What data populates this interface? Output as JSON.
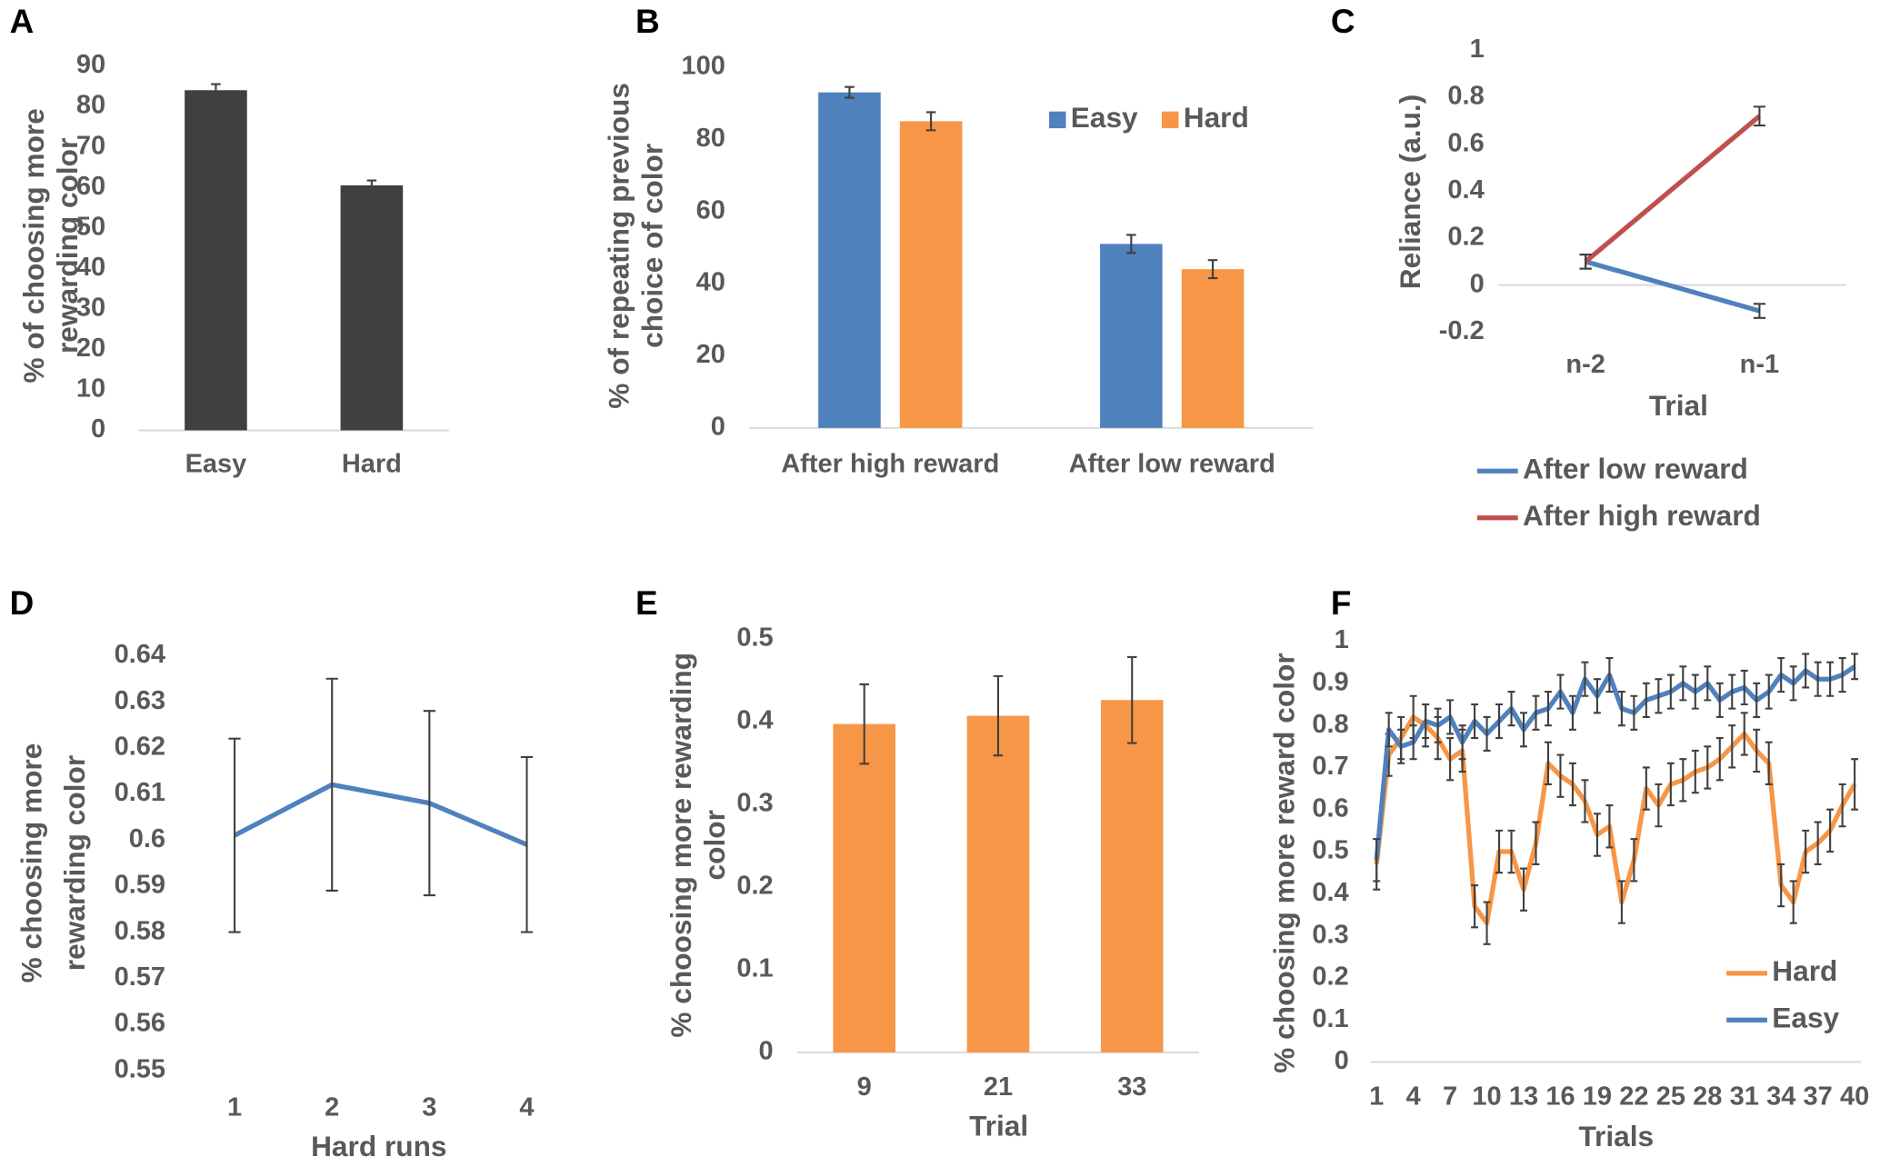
{
  "chart_data": [
    {
      "type": "bar",
      "panel": "A",
      "ylabel": [
        "% of choosing more",
        "rewarding color"
      ],
      "categories": [
        "Easy",
        "Hard"
      ],
      "values": [
        84,
        60.5
      ],
      "error": [
        1.5,
        1.2
      ],
      "color": "#404040",
      "ylim": [
        0,
        90
      ],
      "yticks": [
        0,
        10,
        20,
        30,
        40,
        50,
        60,
        70,
        80,
        90
      ]
    },
    {
      "type": "bar",
      "panel": "B",
      "ylabel": [
        "% of repeating previous",
        "choice of color"
      ],
      "categories": [
        "After high reward",
        "After low reward"
      ],
      "series": [
        {
          "name": "Easy",
          "color": "#4f81bd",
          "values": [
            93,
            51
          ],
          "error": [
            1.5,
            2.5
          ]
        },
        {
          "name": "Hard",
          "color": "#f79646",
          "values": [
            85,
            44
          ],
          "error": [
            2.5,
            2.5
          ]
        }
      ],
      "ylim": [
        0,
        100
      ],
      "yticks": [
        0,
        20,
        40,
        60,
        80,
        100
      ]
    },
    {
      "type": "line",
      "panel": "C",
      "ylabel": [
        "Reliance (a.u.)"
      ],
      "xlabel": "Trial",
      "categories": [
        "n-2",
        "n-1"
      ],
      "series": [
        {
          "name": "After low reward",
          "color": "#4f81bd",
          "values": [
            0.1,
            -0.11
          ],
          "error": [
            0.03,
            0.03
          ]
        },
        {
          "name": "After high reward",
          "color": "#c0504d",
          "values": [
            0.1,
            0.72
          ],
          "error": [
            0.03,
            0.04
          ]
        }
      ],
      "ylim": [
        -0.2,
        1
      ],
      "yticks": [
        -0.2,
        0,
        0.2,
        0.4,
        0.6,
        0.8,
        1
      ]
    },
    {
      "type": "line",
      "panel": "D",
      "ylabel": [
        "% choosing more",
        "rewarding color"
      ],
      "xlabel": "Hard runs",
      "categories": [
        "1",
        "2",
        "3",
        "4"
      ],
      "values": [
        0.601,
        0.612,
        0.608,
        0.599
      ],
      "error": [
        0.021,
        0.023,
        0.02,
        0.019
      ],
      "color": "#4f81bd",
      "ylim": [
        0.55,
        0.64
      ],
      "yticks": [
        0.55,
        0.56,
        0.57,
        0.58,
        0.59,
        0.6,
        0.61,
        0.62,
        0.63,
        0.64
      ]
    },
    {
      "type": "bar",
      "panel": "E",
      "ylabel": [
        "% choosing more rewarding",
        "color"
      ],
      "xlabel": "Trial",
      "categories": [
        "9",
        "21",
        "33"
      ],
      "values": [
        0.397,
        0.407,
        0.426
      ],
      "error": [
        0.048,
        0.048,
        0.052
      ],
      "color": "#f79646",
      "ylim": [
        0,
        0.5
      ],
      "yticks": [
        0,
        0.1,
        0.2,
        0.3,
        0.4,
        0.5
      ]
    },
    {
      "type": "line",
      "panel": "F",
      "ylabel": [
        "% choosing more reward color"
      ],
      "xlabel": "Trials",
      "x": [
        1,
        2,
        3,
        4,
        5,
        6,
        7,
        8,
        9,
        10,
        11,
        12,
        13,
        14,
        15,
        16,
        17,
        18,
        19,
        20,
        21,
        22,
        23,
        24,
        25,
        26,
        27,
        28,
        29,
        30,
        31,
        32,
        33,
        34,
        35,
        36,
        37,
        38,
        39,
        40
      ],
      "series": [
        {
          "name": "Hard",
          "color": "#f79646",
          "values": [
            0.47,
            0.73,
            0.77,
            0.82,
            0.8,
            0.77,
            0.72,
            0.74,
            0.37,
            0.33,
            0.5,
            0.5,
            0.41,
            0.52,
            0.71,
            0.68,
            0.66,
            0.62,
            0.54,
            0.56,
            0.38,
            0.48,
            0.65,
            0.61,
            0.66,
            0.67,
            0.69,
            0.7,
            0.72,
            0.75,
            0.78,
            0.74,
            0.71,
            0.42,
            0.38,
            0.5,
            0.52,
            0.55,
            0.61,
            0.66
          ],
          "error": [
            0.06,
            0.05,
            0.05,
            0.05,
            0.05,
            0.05,
            0.05,
            0.05,
            0.05,
            0.05,
            0.05,
            0.05,
            0.05,
            0.05,
            0.05,
            0.05,
            0.05,
            0.05,
            0.05,
            0.05,
            0.05,
            0.05,
            0.05,
            0.05,
            0.05,
            0.05,
            0.05,
            0.05,
            0.05,
            0.05,
            0.05,
            0.05,
            0.05,
            0.05,
            0.05,
            0.05,
            0.05,
            0.05,
            0.05,
            0.06
          ]
        },
        {
          "name": "Easy",
          "color": "#4f81bd",
          "values": [
            0.48,
            0.79,
            0.75,
            0.76,
            0.81,
            0.8,
            0.82,
            0.76,
            0.81,
            0.78,
            0.81,
            0.84,
            0.79,
            0.83,
            0.84,
            0.88,
            0.83,
            0.91,
            0.87,
            0.92,
            0.84,
            0.83,
            0.86,
            0.87,
            0.88,
            0.9,
            0.88,
            0.9,
            0.86,
            0.88,
            0.89,
            0.86,
            0.88,
            0.92,
            0.9,
            0.93,
            0.91,
            0.91,
            0.92,
            0.94
          ],
          "error": [
            0.05,
            0.04,
            0.04,
            0.04,
            0.04,
            0.04,
            0.04,
            0.04,
            0.04,
            0.04,
            0.04,
            0.04,
            0.04,
            0.04,
            0.04,
            0.04,
            0.04,
            0.04,
            0.04,
            0.04,
            0.04,
            0.04,
            0.04,
            0.04,
            0.04,
            0.04,
            0.04,
            0.04,
            0.04,
            0.04,
            0.04,
            0.04,
            0.04,
            0.04,
            0.04,
            0.04,
            0.04,
            0.04,
            0.04,
            0.03
          ]
        }
      ],
      "xlim": [
        0.5,
        40.5
      ],
      "xticks": [
        1,
        4,
        7,
        10,
        13,
        16,
        19,
        22,
        25,
        28,
        31,
        34,
        37,
        40
      ],
      "ylim": [
        0,
        1
      ],
      "yticks": [
        0,
        0.1,
        0.2,
        0.3,
        0.4,
        0.5,
        0.6,
        0.7,
        0.8,
        0.9,
        1
      ]
    }
  ]
}
